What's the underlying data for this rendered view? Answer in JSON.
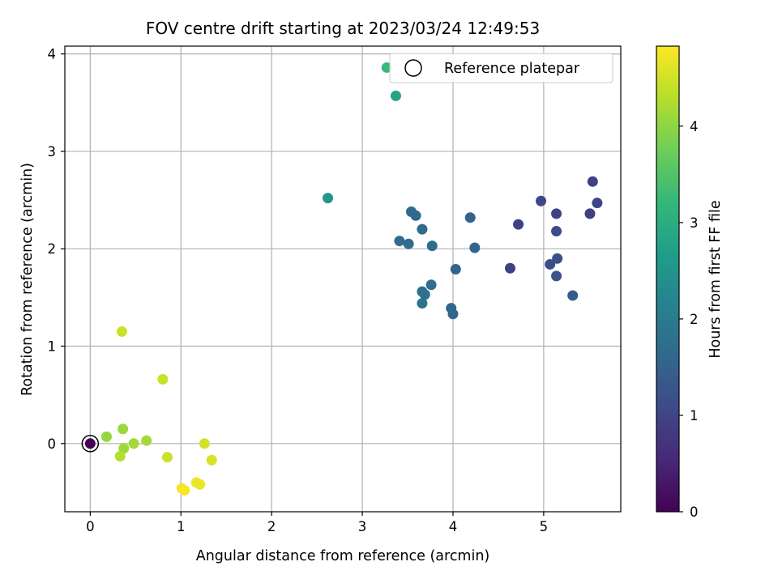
{
  "chart_data": {
    "type": "scatter",
    "title": "FOV centre drift starting at 2023/03/24 12:49:53",
    "xlabel": "Angular distance from reference (arcmin)",
    "ylabel": "Rotation from reference (arcmin)",
    "xlim": [
      -0.28,
      5.85
    ],
    "ylim": [
      -0.7,
      4.08
    ],
    "x_ticks": [
      0,
      1,
      2,
      3,
      4,
      5
    ],
    "y_ticks": [
      0,
      1,
      2,
      3,
      4
    ],
    "grid": true,
    "colormap": "viridis",
    "colorbar": {
      "label": "Hours from first FF file",
      "min": 0,
      "max": 4.83,
      "ticks": [
        0,
        1,
        2,
        3,
        4
      ],
      "colors": [
        "#440154",
        "#482878",
        "#3e4989",
        "#31688e",
        "#26828e",
        "#1f9e89",
        "#35b779",
        "#6ece58",
        "#b5de2b",
        "#fde725"
      ]
    },
    "legend": {
      "label": "Reference platepar",
      "position": "top-right"
    },
    "reference_point": {
      "x": 0,
      "y": 0
    },
    "points": [
      {
        "x": 0.0,
        "y": 0.0,
        "c": 0.0
      },
      {
        "x": 4.63,
        "y": 1.8,
        "c": 0.95
      },
      {
        "x": 4.72,
        "y": 2.25,
        "c": 0.95
      },
      {
        "x": 4.97,
        "y": 2.49,
        "c": 1.05
      },
      {
        "x": 5.14,
        "y": 2.36,
        "c": 0.95
      },
      {
        "x": 5.51,
        "y": 2.36,
        "c": 0.95
      },
      {
        "x": 5.54,
        "y": 2.69,
        "c": 0.95
      },
      {
        "x": 5.59,
        "y": 2.47,
        "c": 1.0
      },
      {
        "x": 5.14,
        "y": 2.18,
        "c": 1.1
      },
      {
        "x": 5.07,
        "y": 1.84,
        "c": 1.15
      },
      {
        "x": 5.15,
        "y": 1.9,
        "c": 1.2
      },
      {
        "x": 5.14,
        "y": 1.72,
        "c": 1.25
      },
      {
        "x": 5.32,
        "y": 1.52,
        "c": 1.4
      },
      {
        "x": 4.19,
        "y": 2.32,
        "c": 1.5
      },
      {
        "x": 4.24,
        "y": 2.01,
        "c": 1.55
      },
      {
        "x": 4.03,
        "y": 1.79,
        "c": 1.55
      },
      {
        "x": 3.98,
        "y": 1.39,
        "c": 1.6
      },
      {
        "x": 4.0,
        "y": 1.33,
        "c": 1.6
      },
      {
        "x": 3.54,
        "y": 2.38,
        "c": 1.65
      },
      {
        "x": 3.59,
        "y": 2.34,
        "c": 1.65
      },
      {
        "x": 3.66,
        "y": 2.2,
        "c": 1.65
      },
      {
        "x": 3.41,
        "y": 2.08,
        "c": 1.7
      },
      {
        "x": 3.51,
        "y": 2.05,
        "c": 1.7
      },
      {
        "x": 3.77,
        "y": 2.03,
        "c": 1.7
      },
      {
        "x": 3.76,
        "y": 1.63,
        "c": 1.75
      },
      {
        "x": 3.66,
        "y": 1.56,
        "c": 1.75
      },
      {
        "x": 3.69,
        "y": 1.53,
        "c": 1.8
      },
      {
        "x": 3.66,
        "y": 1.44,
        "c": 1.85
      },
      {
        "x": 2.62,
        "y": 2.52,
        "c": 2.55
      },
      {
        "x": 3.37,
        "y": 3.57,
        "c": 2.8
      },
      {
        "x": 3.27,
        "y": 3.86,
        "c": 3.25
      },
      {
        "x": 0.35,
        "y": 1.15,
        "c": 4.45
      },
      {
        "x": 0.8,
        "y": 0.66,
        "c": 4.45
      },
      {
        "x": 0.18,
        "y": 0.07,
        "c": 4.05
      },
      {
        "x": 0.36,
        "y": 0.15,
        "c": 4.1
      },
      {
        "x": 0.37,
        "y": -0.05,
        "c": 4.1
      },
      {
        "x": 0.48,
        "y": 0.0,
        "c": 4.15
      },
      {
        "x": 0.62,
        "y": 0.03,
        "c": 4.15
      },
      {
        "x": 0.33,
        "y": -0.13,
        "c": 4.3
      },
      {
        "x": 0.85,
        "y": -0.14,
        "c": 4.45
      },
      {
        "x": 1.26,
        "y": 0.0,
        "c": 4.5
      },
      {
        "x": 1.34,
        "y": -0.17,
        "c": 4.55
      },
      {
        "x": 1.17,
        "y": -0.4,
        "c": 4.7
      },
      {
        "x": 1.21,
        "y": -0.42,
        "c": 4.7
      },
      {
        "x": 1.01,
        "y": -0.46,
        "c": 4.75
      },
      {
        "x": 1.04,
        "y": -0.48,
        "c": 4.8
      }
    ]
  }
}
